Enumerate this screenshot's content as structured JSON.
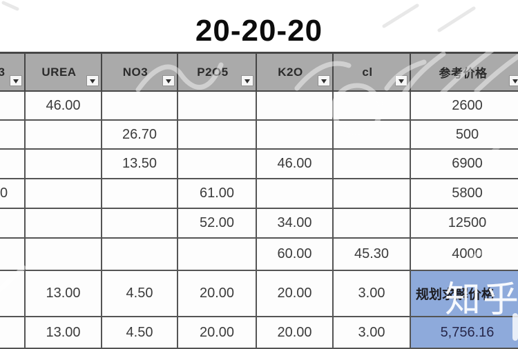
{
  "title": "20-20-20",
  "watermark": {
    "brand": "知乎"
  },
  "colors": {
    "header_gray": "#aaaaaa",
    "highlight_blue": "#8EAADB",
    "grid_border": "#545454"
  },
  "table": {
    "columns": [
      {
        "key": "col0",
        "label": "3",
        "clipped": true
      },
      {
        "key": "urea",
        "label": "UREA"
      },
      {
        "key": "no3",
        "label": "NO3"
      },
      {
        "key": "p2o5",
        "label": "P2O5"
      },
      {
        "key": "k2o",
        "label": "K2O"
      },
      {
        "key": "cl",
        "label": "cl"
      },
      {
        "key": "price",
        "label": "参考价格"
      }
    ],
    "rows": [
      [
        "",
        "46.00",
        "",
        "",
        "",
        "",
        "2600"
      ],
      [
        "",
        "",
        "26.70",
        "",
        "",
        "",
        "500"
      ],
      [
        "",
        "",
        "13.50",
        "",
        "46.00",
        "",
        "6900"
      ],
      [
        "0",
        "",
        "",
        "61.00",
        "",
        "",
        "5800"
      ],
      [
        "",
        "",
        "",
        "52.00",
        "34.00",
        "",
        "12500"
      ],
      [
        "",
        "",
        "",
        "",
        "60.00",
        "45.30",
        "4000"
      ],
      [
        "",
        "13.00",
        "4.50",
        "20.00",
        "20.00",
        "3.00",
        "规划求解价格"
      ],
      [
        "",
        "13.00",
        "4.50",
        "20.00",
        "20.00",
        "3.00",
        "5,756.16"
      ]
    ],
    "highlight_cells": [
      {
        "row": 6,
        "col": 6,
        "style": "plan"
      },
      {
        "row": 7,
        "col": 6,
        "style": "number"
      }
    ],
    "clipped_cells": [
      {
        "row": 3,
        "col": 0
      }
    ]
  }
}
